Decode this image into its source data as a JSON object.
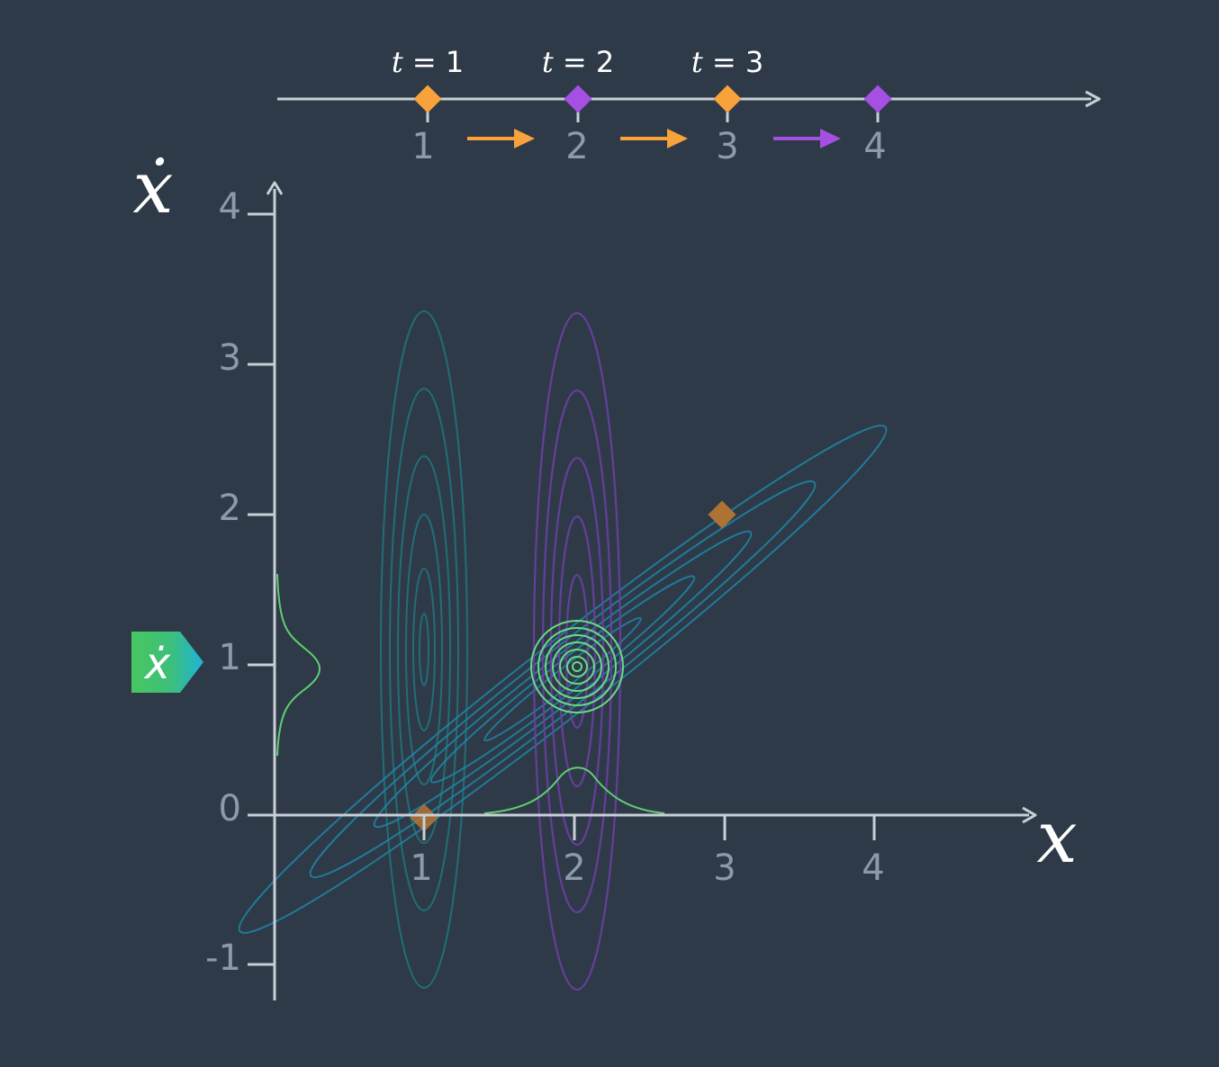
{
  "timeline": {
    "time_labels": [
      {
        "var": "t",
        "eq": " = 1"
      },
      {
        "var": "t",
        "eq": " = 2"
      },
      {
        "var": "t",
        "eq": " = 3"
      }
    ],
    "positions": [
      "1",
      "2",
      "3",
      "4"
    ],
    "marker_colors": [
      "#f7a23b",
      "#a64fe3",
      "#f7a23b",
      "#a64fe3"
    ],
    "arrow_colors": [
      "#f7a23b",
      "#f7a23b",
      "#a64fe3"
    ]
  },
  "plot": {
    "x_axis_label": "x",
    "y_axis_label": "ẋ",
    "x_ticks": [
      "1",
      "2",
      "3",
      "4"
    ],
    "y_ticks": [
      "4",
      "3",
      "2",
      "1",
      "0",
      "-1"
    ],
    "tag_label": "ẋ",
    "colors": {
      "axis": "#c8cfd7",
      "tick": "#8c9aaa",
      "teal": "#1f7f86",
      "purple": "#6c3fa3",
      "blue": "#1f86a8",
      "green": "#6ee28a",
      "green_line": "#5fcf72",
      "orange": "#b47534",
      "tag_start": "#47c760",
      "tag_end": "#1fb3d9"
    }
  }
}
